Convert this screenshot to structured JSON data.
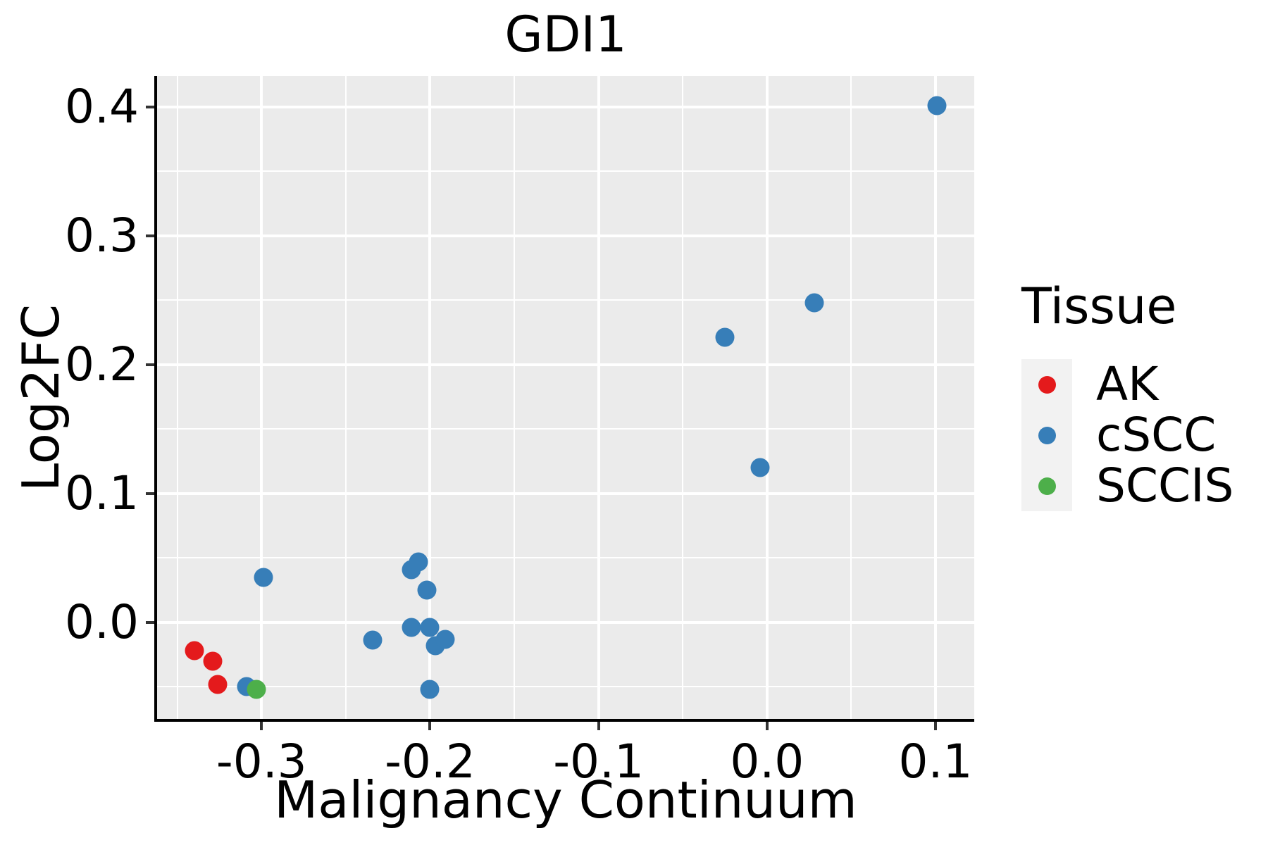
{
  "title": "GDI1",
  "legend": {
    "title": "Tissue",
    "items": [
      {
        "label": "AK",
        "color": "#e41a1c"
      },
      {
        "label": "cSCC",
        "color": "#377eb8"
      },
      {
        "label": "SCCIS",
        "color": "#4daf4a"
      }
    ]
  },
  "colors": {
    "panel_background": "#ebebeb",
    "gridline": "#ffffff",
    "axis_line": "#000000",
    "tick_mark": "#333333",
    "text": "#000000",
    "legend_key_background": "#f2f2f2",
    "ak_red": "#e41a1c",
    "cscc_blue": "#377eb8",
    "sccis_green": "#4daf4a"
  },
  "chart_data": {
    "type": "scatter",
    "title": "GDI1",
    "xlabel": "Malignancy Continuum",
    "ylabel": "Log2FC",
    "xlim": [
      -0.362,
      0.123
    ],
    "ylim": [
      -0.075,
      0.424
    ],
    "x_ticks": [
      -0.3,
      -0.2,
      -0.1,
      0.0,
      0.1
    ],
    "x_tick_labels": [
      "-0.3",
      "-0.2",
      "-0.1",
      "0.0",
      "0.1"
    ],
    "y_ticks": [
      0.0,
      0.1,
      0.2,
      0.3,
      0.4
    ],
    "y_tick_labels": [
      "0.0",
      "0.1",
      "0.2",
      "0.3",
      "0.4"
    ],
    "grid": "white major and minor gridlines on gray panel",
    "legend_position": "right",
    "series": [
      {
        "name": "AK",
        "color": "#e41a1c",
        "points": [
          [
            -0.34,
            -0.022
          ],
          [
            -0.329,
            -0.03
          ],
          [
            -0.326,
            -0.048
          ]
        ]
      },
      {
        "name": "cSCC",
        "color": "#377eb8",
        "points": [
          [
            -0.309,
            -0.05
          ],
          [
            -0.299,
            0.035
          ],
          [
            -0.234,
            -0.014
          ],
          [
            -0.211,
            0.041
          ],
          [
            -0.207,
            0.047
          ],
          [
            -0.202,
            0.025
          ],
          [
            -0.211,
            -0.004
          ],
          [
            -0.2,
            -0.004
          ],
          [
            -0.197,
            -0.018
          ],
          [
            -0.191,
            -0.013
          ],
          [
            -0.2,
            -0.052
          ],
          [
            -0.025,
            0.221
          ],
          [
            0.028,
            0.248
          ],
          [
            -0.004,
            0.12
          ],
          [
            0.101,
            0.401
          ]
        ]
      },
      {
        "name": "SCCIS",
        "color": "#4daf4a",
        "points": [
          [
            -0.303,
            -0.052
          ]
        ]
      }
    ]
  }
}
